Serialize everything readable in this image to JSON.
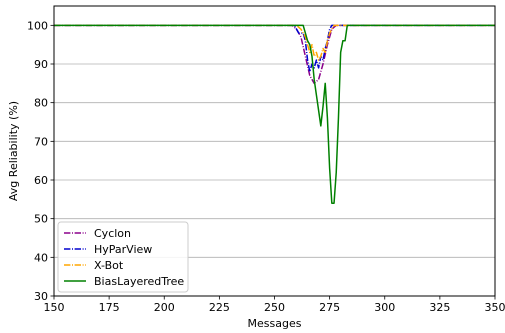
{
  "chart_data": {
    "type": "line",
    "title": "",
    "xlabel": "Messages",
    "ylabel": "Avg Reliability (%)",
    "xlim": [
      150,
      350
    ],
    "ylim": [
      30,
      105
    ],
    "xticks": [
      150,
      175,
      200,
      225,
      250,
      275,
      300,
      325,
      350
    ],
    "yticks": [
      30,
      40,
      50,
      60,
      70,
      80,
      90,
      100
    ],
    "grid": "horizontal",
    "legend_position": "bottom-left",
    "series": [
      {
        "name": "Cyclon",
        "color": "#8b008b",
        "dash": "dashdot",
        "points": [
          [
            150,
            100
          ],
          [
            258,
            100
          ],
          [
            260,
            99
          ],
          [
            262,
            97
          ],
          [
            264,
            92
          ],
          [
            266,
            87
          ],
          [
            268,
            85
          ],
          [
            270,
            86
          ],
          [
            272,
            90
          ],
          [
            274,
            95
          ],
          [
            276,
            99
          ],
          [
            278,
            100
          ],
          [
            350,
            100
          ]
        ]
      },
      {
        "name": "HyParView",
        "color": "#0000cd",
        "dash": "dashdot",
        "points": [
          [
            150,
            100
          ],
          [
            259,
            100
          ],
          [
            261,
            98
          ],
          [
            263,
            98
          ],
          [
            264,
            96
          ],
          [
            265,
            91
          ],
          [
            266,
            88
          ],
          [
            267,
            90
          ],
          [
            268,
            89
          ],
          [
            269,
            91
          ],
          [
            270,
            89
          ],
          [
            271,
            92
          ],
          [
            272,
            91
          ],
          [
            273,
            94
          ],
          [
            274,
            96
          ],
          [
            275,
            99
          ],
          [
            276,
            100
          ],
          [
            350,
            100
          ]
        ]
      },
      {
        "name": "X-Bot",
        "color": "#ffa500",
        "dash": "dashdot",
        "points": [
          [
            150,
            100
          ],
          [
            260,
            100
          ],
          [
            262,
            99
          ],
          [
            264,
            97
          ],
          [
            265,
            95
          ],
          [
            266,
            93
          ],
          [
            267,
            95
          ],
          [
            268,
            92
          ],
          [
            269,
            93
          ],
          [
            270,
            91
          ],
          [
            271,
            92
          ],
          [
            272,
            94
          ],
          [
            273,
            93
          ],
          [
            274,
            96
          ],
          [
            275,
            98
          ],
          [
            277,
            100
          ],
          [
            350,
            100
          ]
        ]
      },
      {
        "name": "BiasLayeredTree",
        "color": "#008000",
        "dash": "solid",
        "points": [
          [
            150,
            100
          ],
          [
            263,
            100
          ],
          [
            264,
            98
          ],
          [
            265,
            96
          ],
          [
            266,
            95
          ],
          [
            267,
            92
          ],
          [
            268,
            86
          ],
          [
            269,
            82
          ],
          [
            270,
            78
          ],
          [
            271,
            74
          ],
          [
            272,
            79
          ],
          [
            273,
            85
          ],
          [
            274,
            76
          ],
          [
            275,
            63
          ],
          [
            276,
            54
          ],
          [
            277,
            54
          ],
          [
            278,
            62
          ],
          [
            279,
            76
          ],
          [
            280,
            93
          ],
          [
            281,
            96
          ],
          [
            282,
            96
          ],
          [
            283,
            100
          ],
          [
            350,
            100
          ]
        ]
      }
    ]
  }
}
